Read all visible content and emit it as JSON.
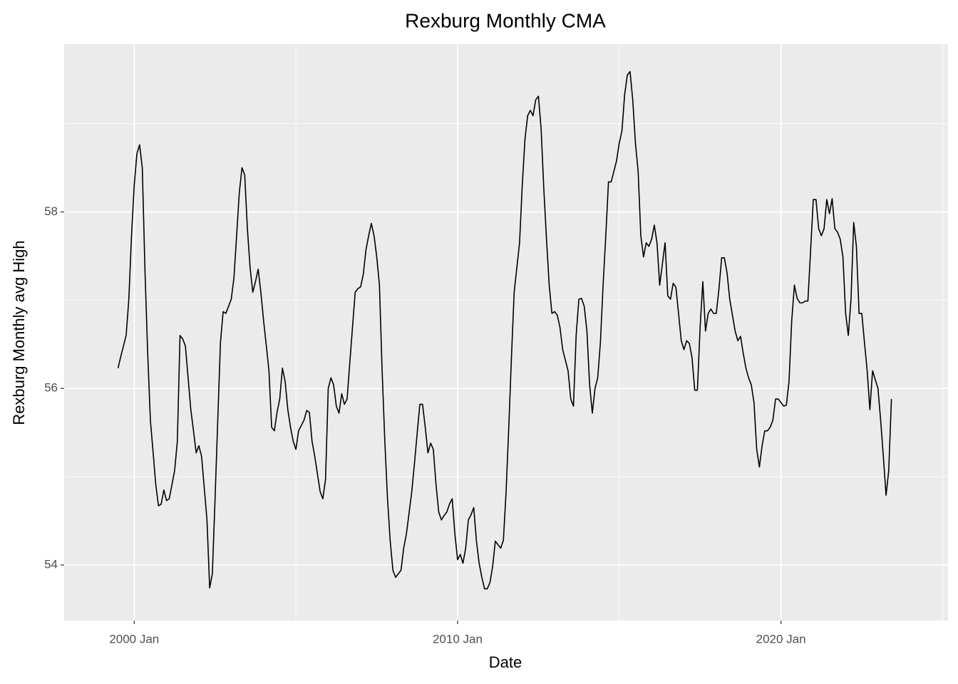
{
  "chart_data": {
    "type": "line",
    "title": "Rexburg Monthly CMA",
    "x_label": "Date",
    "y_label": "Rexburg Monthly avg High",
    "color": "#000000",
    "grid": true,
    "xlim": [
      "1997 Nov",
      "2025 Mar"
    ],
    "xticks": [
      "2000 Jan",
      "2010 Jan",
      "2020 Jan"
    ],
    "ylim": [
      53.37,
      59.9
    ],
    "yticks": [
      54,
      56,
      58
    ],
    "x": [
      "1999 Jul",
      "1999 Aug",
      "1999 Sep",
      "1999 Oct",
      "1999 Nov",
      "1999 Dec",
      "2000 Jan",
      "2000 Feb",
      "2000 Mar",
      "2000 Apr",
      "2000 May",
      "2000 Jun",
      "2000 Jul",
      "2000 Aug",
      "2000 Sep",
      "2000 Oct",
      "2000 Nov",
      "2000 Dec",
      "2001 Jan",
      "2001 Feb",
      "2001 Mar",
      "2001 Apr",
      "2001 May",
      "2001 Jun",
      "2001 Jul",
      "2001 Aug",
      "2001 Sep",
      "2001 Oct",
      "2001 Nov",
      "2001 Dec",
      "2002 Jan",
      "2002 Feb",
      "2002 Mar",
      "2002 Apr",
      "2002 May",
      "2002 Jun",
      "2002 Jul",
      "2002 Aug",
      "2002 Sep",
      "2002 Oct",
      "2002 Nov",
      "2002 Dec",
      "2003 Jan",
      "2003 Feb",
      "2003 Mar",
      "2003 Apr",
      "2003 May",
      "2003 Jun",
      "2003 Jul",
      "2003 Aug",
      "2003 Sep",
      "2003 Oct",
      "2003 Nov",
      "2003 Dec",
      "2004 Jan",
      "2004 Feb",
      "2004 Mar",
      "2004 Apr",
      "2004 May",
      "2004 Jun",
      "2004 Jul",
      "2004 Aug",
      "2004 Sep",
      "2004 Oct",
      "2004 Nov",
      "2004 Dec",
      "2005 Jan",
      "2005 Feb",
      "2005 Mar",
      "2005 Apr",
      "2005 May",
      "2005 Jun",
      "2005 Jul",
      "2005 Aug",
      "2005 Sep",
      "2005 Oct",
      "2005 Nov",
      "2005 Dec",
      "2006 Jan",
      "2006 Feb",
      "2006 Mar",
      "2006 Apr",
      "2006 May",
      "2006 Jun",
      "2006 Jul",
      "2006 Aug",
      "2006 Sep",
      "2006 Oct",
      "2006 Nov",
      "2006 Dec",
      "2007 Jan",
      "2007 Feb",
      "2007 Mar",
      "2007 Apr",
      "2007 May",
      "2007 Jun",
      "2007 Jul",
      "2007 Aug",
      "2007 Sep",
      "2007 Oct",
      "2007 Nov",
      "2007 Dec",
      "2008 Jan",
      "2008 Feb",
      "2008 Mar",
      "2008 Apr",
      "2008 May",
      "2008 Jun",
      "2008 Jul",
      "2008 Aug",
      "2008 Sep",
      "2008 Oct",
      "2008 Nov",
      "2008 Dec",
      "2009 Jan",
      "2009 Feb",
      "2009 Mar",
      "2009 Apr",
      "2009 May",
      "2009 Jun",
      "2009 Jul",
      "2009 Aug",
      "2009 Sep",
      "2009 Oct",
      "2009 Nov",
      "2009 Dec",
      "2010 Jan",
      "2010 Feb",
      "2010 Mar",
      "2010 Apr",
      "2010 May",
      "2010 Jun",
      "2010 Jul",
      "2010 Aug",
      "2010 Sep",
      "2010 Oct",
      "2010 Nov",
      "2010 Dec",
      "2011 Jan",
      "2011 Feb",
      "2011 Mar",
      "2011 Apr",
      "2011 May",
      "2011 Jun",
      "2011 Jul",
      "2011 Aug",
      "2011 Sep",
      "2011 Oct",
      "2011 Nov",
      "2011 Dec",
      "2012 Jan",
      "2012 Feb",
      "2012 Mar",
      "2012 Apr",
      "2012 May",
      "2012 Jun",
      "2012 Jul",
      "2012 Aug",
      "2012 Sep",
      "2012 Oct",
      "2012 Nov",
      "2012 Dec",
      "2013 Jan",
      "2013 Feb",
      "2013 Mar",
      "2013 Apr",
      "2013 May",
      "2013 Jun",
      "2013 Jul",
      "2013 Aug",
      "2013 Sep",
      "2013 Oct",
      "2013 Nov",
      "2013 Dec",
      "2014 Jan",
      "2014 Feb",
      "2014 Mar",
      "2014 Apr",
      "2014 May",
      "2014 Jun",
      "2014 Jul",
      "2014 Aug",
      "2014 Sep",
      "2014 Oct",
      "2014 Nov",
      "2014 Dec",
      "2015 Jan",
      "2015 Feb",
      "2015 Mar",
      "2015 Apr",
      "2015 May",
      "2015 Jun",
      "2015 Jul",
      "2015 Aug",
      "2015 Sep",
      "2015 Oct",
      "2015 Nov",
      "2015 Dec",
      "2016 Jan",
      "2016 Feb",
      "2016 Mar",
      "2016 Apr",
      "2016 May",
      "2016 Jun",
      "2016 Jul",
      "2016 Aug",
      "2016 Sep",
      "2016 Oct",
      "2016 Nov",
      "2016 Dec",
      "2017 Jan",
      "2017 Feb",
      "2017 Mar",
      "2017 Apr",
      "2017 May",
      "2017 Jun",
      "2017 Jul",
      "2017 Aug",
      "2017 Sep",
      "2017 Oct",
      "2017 Nov",
      "2017 Dec",
      "2018 Jan",
      "2018 Feb",
      "2018 Mar",
      "2018 Apr",
      "2018 May",
      "2018 Jun",
      "2018 Jul",
      "2018 Aug",
      "2018 Sep",
      "2018 Oct",
      "2018 Nov",
      "2018 Dec",
      "2019 Jan",
      "2019 Feb",
      "2019 Mar",
      "2019 Apr",
      "2019 May",
      "2019 Jun",
      "2019 Jul",
      "2019 Aug",
      "2019 Sep",
      "2019 Oct",
      "2019 Nov",
      "2019 Dec",
      "2020 Jan",
      "2020 Feb",
      "2020 Mar",
      "2020 Apr",
      "2020 May",
      "2020 Jun",
      "2020 Jul",
      "2020 Aug",
      "2020 Sep",
      "2020 Oct",
      "2020 Nov",
      "2020 Dec",
      "2021 Jan",
      "2021 Feb",
      "2021 Mar",
      "2021 Apr",
      "2021 May",
      "2021 Jun",
      "2021 Jul",
      "2021 Aug",
      "2021 Sep",
      "2021 Oct",
      "2021 Nov",
      "2021 Dec",
      "2022 Jan",
      "2022 Feb",
      "2022 Mar",
      "2022 Apr",
      "2022 May",
      "2022 Jun",
      "2022 Jul",
      "2022 Aug",
      "2022 Sep",
      "2022 Oct",
      "2022 Nov",
      "2022 Dec",
      "2023 Jan",
      "2023 Feb",
      "2023 Mar",
      "2023 Apr",
      "2023 May",
      "2023 Jun"
    ],
    "values": [
      56.23,
      56.36,
      56.48,
      56.6,
      57.01,
      57.73,
      58.3,
      58.66,
      58.76,
      58.5,
      57.33,
      56.4,
      55.64,
      55.28,
      54.91,
      54.67,
      54.69,
      54.85,
      54.73,
      54.75,
      54.91,
      55.07,
      55.4,
      56.6,
      56.56,
      56.48,
      56.12,
      55.76,
      55.52,
      55.27,
      55.35,
      55.23,
      54.87,
      54.51,
      53.74,
      53.9,
      54.75,
      55.64,
      56.52,
      56.87,
      56.85,
      56.93,
      57.01,
      57.25,
      57.73,
      58.22,
      58.5,
      58.42,
      57.81,
      57.37,
      57.09,
      57.21,
      57.35,
      57.09,
      56.77,
      56.49,
      56.2,
      55.56,
      55.52,
      55.73,
      55.88,
      56.23,
      56.08,
      55.76,
      55.56,
      55.4,
      55.31,
      55.52,
      55.58,
      55.64,
      55.75,
      55.73,
      55.4,
      55.23,
      55.03,
      54.83,
      54.75,
      54.97,
      56,
      56.12,
      56.04,
      55.8,
      55.72,
      55.94,
      55.82,
      55.88,
      56.29,
      56.69,
      57.09,
      57.13,
      57.15,
      57.29,
      57.57,
      57.73,
      57.87,
      57.73,
      57.49,
      57.17,
      56.2,
      55.4,
      54.75,
      54.27,
      53.94,
      53.86,
      53.9,
      53.94,
      54.19,
      54.35,
      54.59,
      54.83,
      55.15,
      55.49,
      55.82,
      55.82,
      55.56,
      55.27,
      55.38,
      55.31,
      54.91,
      54.6,
      54.51,
      54.56,
      54.6,
      54.69,
      54.75,
      54.35,
      54.06,
      54.12,
      54.02,
      54.19,
      54.51,
      54.57,
      54.65,
      54.27,
      54.02,
      53.86,
      53.73,
      53.73,
      53.8,
      53.98,
      54.27,
      54.23,
      54.19,
      54.28,
      54.83,
      55.56,
      56.36,
      57.09,
      57.37,
      57.65,
      58.3,
      58.82,
      59.09,
      59.15,
      59.09,
      59.27,
      59.31,
      58.94,
      58.26,
      57.69,
      57.17,
      56.85,
      56.87,
      56.83,
      56.69,
      56.44,
      56.32,
      56.2,
      55.88,
      55.8,
      56.6,
      57.01,
      57.02,
      56.93,
      56.65,
      56.04,
      55.72,
      56,
      56.12,
      56.52,
      57.17,
      57.73,
      58.34,
      58.34,
      58.46,
      58.58,
      58.78,
      58.92,
      59.33,
      59.55,
      59.59,
      59.27,
      58.78,
      58.46,
      57.73,
      57.49,
      57.65,
      57.61,
      57.69,
      57.85,
      57.65,
      57.17,
      57.41,
      57.65,
      57.05,
      57.01,
      57.19,
      57.15,
      56.85,
      56.54,
      56.44,
      56.54,
      56.51,
      56.35,
      55.98,
      55.98,
      56.69,
      57.21,
      56.65,
      56.85,
      56.9,
      56.85,
      56.85,
      57.13,
      57.48,
      57.48,
      57.31,
      57.01,
      56.83,
      56.65,
      56.54,
      56.59,
      56.4,
      56.23,
      56.12,
      56.04,
      55.84,
      55.31,
      55.11,
      55.35,
      55.52,
      55.52,
      55.56,
      55.64,
      55.88,
      55.88,
      55.84,
      55.8,
      55.81,
      56.08,
      56.77,
      57.17,
      57.02,
      56.97,
      56.97,
      56.99,
      56.99,
      57.56,
      58.14,
      58.14,
      57.81,
      57.73,
      57.81,
      58.14,
      57.98,
      58.15,
      57.81,
      57.77,
      57.69,
      57.49,
      56.85,
      56.6,
      57.01,
      57.88,
      57.61,
      56.85,
      56.85,
      56.52,
      56.2,
      55.76,
      56.2,
      56.1,
      56,
      55.64,
      55.23,
      54.79,
      55.07,
      55.88
    ]
  }
}
